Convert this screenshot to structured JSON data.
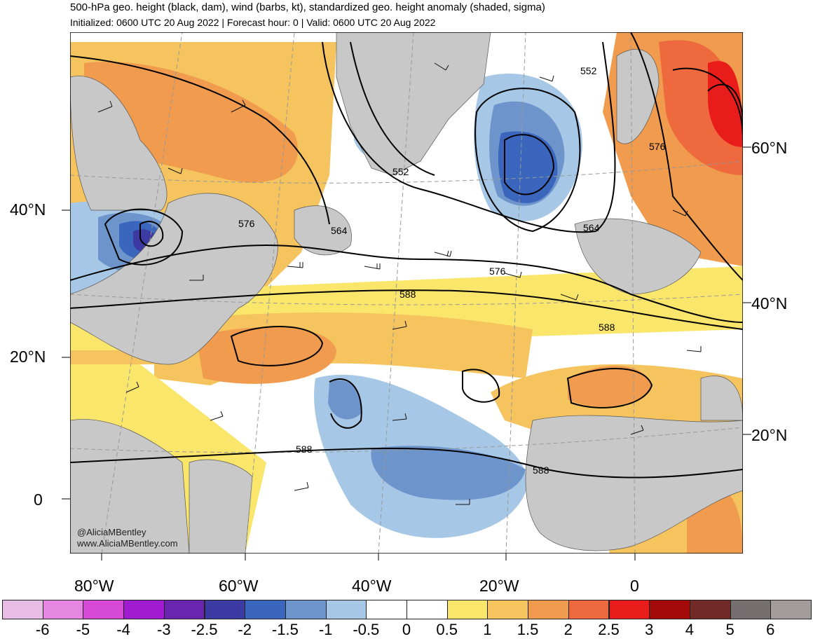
{
  "header": {
    "title": "500-hPa geo. height (black, dam), wind (barbs, kt), standardized geo. height anomaly (shaded, sigma)",
    "subtitle": "Initialized: 0600 UTC 20 Aug 2022 | Forecast hour: 0 | Valid: 0600 UTC 20 Aug 2022"
  },
  "axes": {
    "left_lat": [
      "40°N",
      "20°N",
      "0"
    ],
    "right_lat": [
      "60°N",
      "40°N",
      "20°N"
    ],
    "bottom_lon": [
      "80°W",
      "60°W",
      "40°W",
      "20°W",
      "0"
    ]
  },
  "contour_labels": [
    "552",
    "552",
    "564",
    "564",
    "576",
    "576",
    "576",
    "588",
    "588",
    "588",
    "588"
  ],
  "credit": {
    "handle": "@AliciaMBentley",
    "site": "www.AliciaMBentley.com"
  },
  "colorbar": {
    "colors": [
      "#e8bde5",
      "#e586e0",
      "#d64ad7",
      "#a11bd0",
      "#6a25b0",
      "#3c3ba3",
      "#3b66be",
      "#6e94cc",
      "#a6c8e6",
      "#ffffff",
      "#ffffff",
      "#fbe66c",
      "#f5c45e",
      "#f09b4e",
      "#ee6a3e",
      "#e81c1b",
      "#a30b0b",
      "#722a27",
      "#756f6f",
      "#a29c9c"
    ],
    "labels": [
      "-6",
      "-5",
      "-4",
      "-3",
      "-2.5",
      "-2",
      "-1.5",
      "-1",
      "-0.5",
      "0",
      "0.5",
      "1",
      "1.5",
      "2",
      "2.5",
      "3",
      "4",
      "5",
      "6"
    ]
  }
}
